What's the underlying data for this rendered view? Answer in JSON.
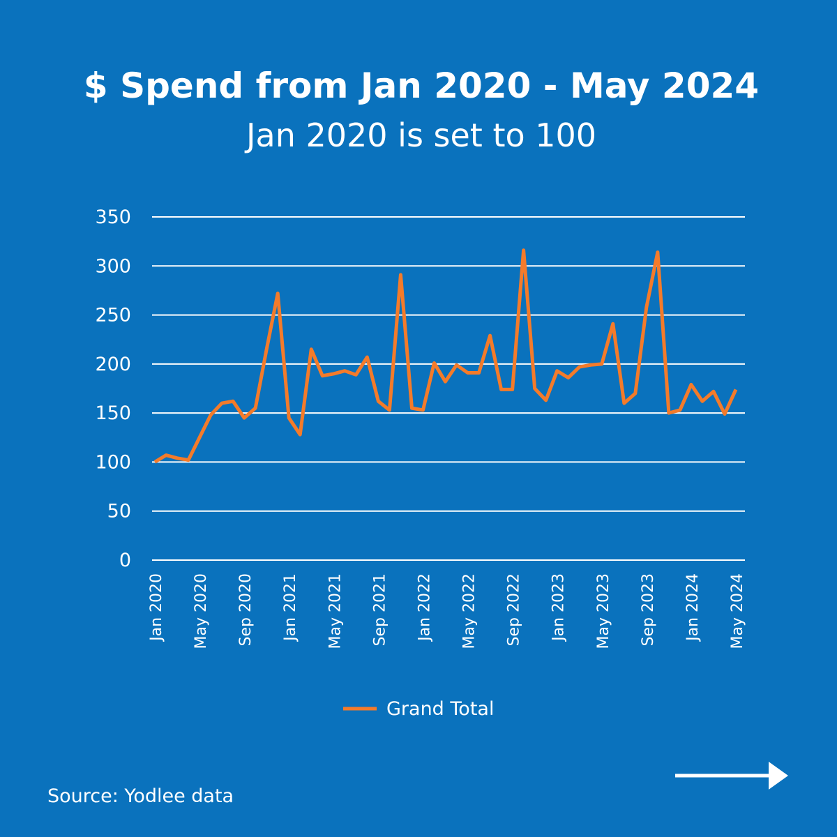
{
  "chart_data": {
    "type": "line",
    "title": "$ Spend from Jan 2020 - May 2024",
    "subtitle": "Jan 2020 is set to 100",
    "source": "Source: Yodlee data",
    "categories": [
      "Jan 2020",
      null,
      null,
      null,
      "May 2020",
      null,
      null,
      null,
      "Sep 2020",
      null,
      null,
      null,
      "Jan 2021",
      null,
      null,
      null,
      "May 2021",
      null,
      null,
      null,
      "Sep 2021",
      null,
      null,
      null,
      "Jan 2022",
      null,
      null,
      null,
      "May 2022",
      null,
      null,
      null,
      "Sep 2022",
      null,
      null,
      null,
      "Jan 2023",
      null,
      null,
      null,
      "May 2023",
      null,
      null,
      null,
      "Sep 2023",
      null,
      null,
      null,
      "Jan 2024",
      null,
      null,
      null,
      "May 2024"
    ],
    "series": [
      {
        "name": "Grand Total",
        "color": "#f47b2a",
        "values": [
          100,
          107,
          104,
          102,
          125,
          148,
          160,
          162,
          145,
          155,
          215,
          272,
          145,
          128,
          215,
          188,
          190,
          193,
          189,
          207,
          162,
          153,
          291,
          155,
          153,
          201,
          182,
          199,
          191,
          191,
          229,
          174,
          174,
          316,
          175,
          163,
          193,
          186,
          197,
          199,
          200,
          241,
          160,
          170,
          258,
          314,
          150,
          153,
          179,
          162,
          172,
          149,
          174
        ]
      }
    ],
    "ylim": [
      0,
      350
    ],
    "yticks": [
      0,
      50,
      100,
      150,
      200,
      250,
      300,
      350
    ],
    "grid": true,
    "legend": "bottom"
  }
}
